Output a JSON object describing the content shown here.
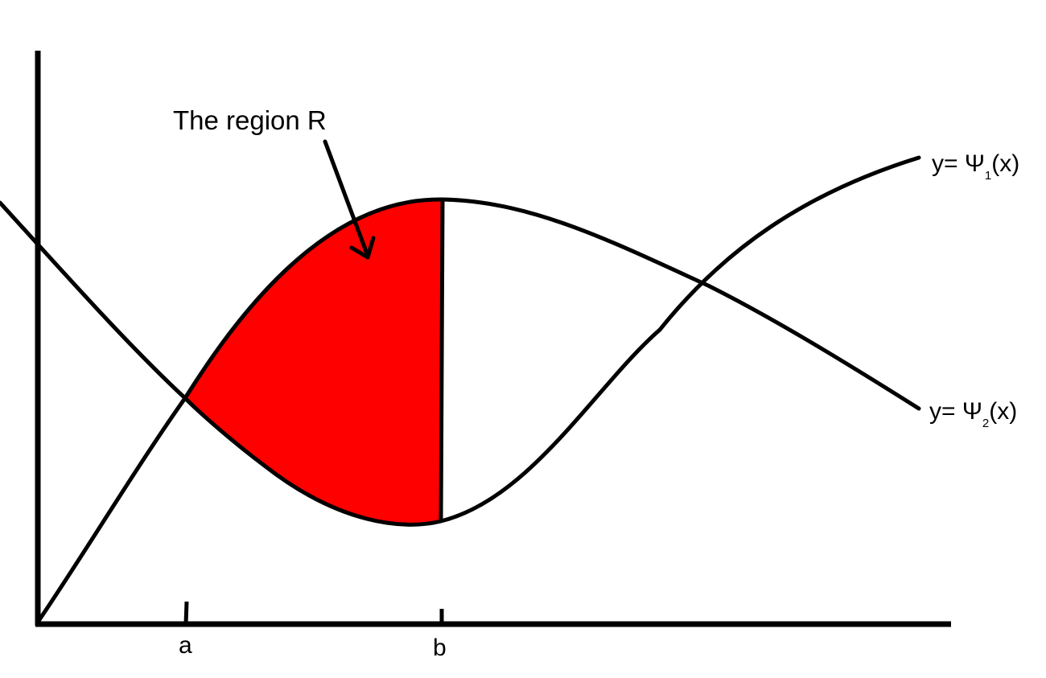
{
  "colors": {
    "stroke": "#000000",
    "region_fill": "#ff0000",
    "background": "#ffffff"
  },
  "region_label": "The region R",
  "curves": {
    "psi1": {
      "prefix": "y= Ψ",
      "sub": "1",
      "suffix": "(x)"
    },
    "psi2": {
      "prefix": "y= Ψ",
      "sub": "2",
      "suffix": "(x)"
    }
  },
  "ticks": {
    "a": "a",
    "b": "b"
  },
  "arrow_icon": "arrow-pointing-down-right"
}
